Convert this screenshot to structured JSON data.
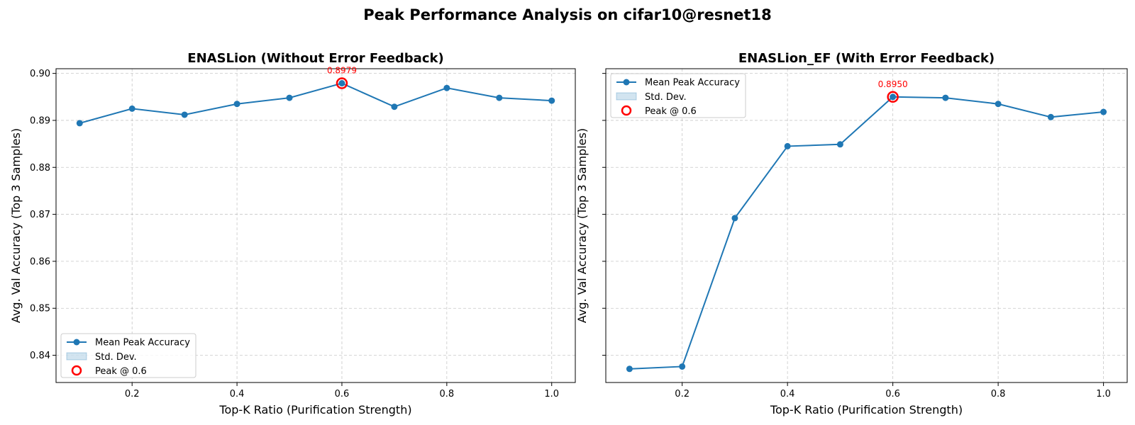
{
  "figure": {
    "suptitle": "Peak Performance Analysis on cifar10@resnet18"
  },
  "chart_data": [
    {
      "type": "line",
      "title": "ENASLion (Without Error Feedback)",
      "xlabel": "Top-K Ratio (Purification Strength)",
      "ylabel": "Avg. Val Accuracy (Top 3 Samples)",
      "x": [
        0.1,
        0.2,
        0.3,
        0.4,
        0.5,
        0.6,
        0.7,
        0.8,
        0.9,
        1.0
      ],
      "series": [
        {
          "name": "Mean Peak Accuracy",
          "values": [
            0.8894,
            0.8925,
            0.8912,
            0.8935,
            0.8948,
            0.8979,
            0.8929,
            0.8969,
            0.8948,
            0.8942
          ],
          "color": "#1f77b4"
        }
      ],
      "std_label": "Std. Dev.",
      "peak": {
        "x": 0.6,
        "y": 0.8979,
        "label": "0.8979",
        "legend": "Peak @ 0.6",
        "color": "#ff0000"
      },
      "xlim": [
        0.055,
        1.045
      ],
      "ylim": [
        0.8342,
        0.901
      ],
      "xticks": [
        0.2,
        0.4,
        0.6,
        0.8,
        1.0
      ],
      "xtick_labels": [
        "0.2",
        "0.4",
        "0.6",
        "0.8",
        "1.0"
      ],
      "yticks": [
        0.84,
        0.85,
        0.86,
        0.87,
        0.88,
        0.89,
        0.9
      ],
      "ytick_labels": [
        "0.84",
        "0.85",
        "0.86",
        "0.87",
        "0.88",
        "0.89",
        "0.90"
      ],
      "show_ytick_labels": true,
      "grid": true,
      "legend_position": "lower-left"
    },
    {
      "type": "line",
      "title": "ENASLion_EF (With Error Feedback)",
      "xlabel": "Top-K Ratio (Purification Strength)",
      "ylabel": "Avg. Val Accuracy (Top 3 Samples)",
      "x": [
        0.1,
        0.2,
        0.3,
        0.4,
        0.5,
        0.6,
        0.7,
        0.8,
        0.9,
        1.0
      ],
      "series": [
        {
          "name": "Mean Peak Accuracy",
          "values": [
            0.8371,
            0.8376,
            0.8692,
            0.8845,
            0.8849,
            0.895,
            0.8948,
            0.8935,
            0.8907,
            0.8918
          ],
          "color": "#1f77b4"
        }
      ],
      "std_label": "Std. Dev.",
      "peak": {
        "x": 0.6,
        "y": 0.895,
        "label": "0.8950",
        "legend": "Peak @ 0.6",
        "color": "#ff0000"
      },
      "xlim": [
        0.055,
        1.045
      ],
      "ylim": [
        0.8342,
        0.901
      ],
      "xticks": [
        0.2,
        0.4,
        0.6,
        0.8,
        1.0
      ],
      "xtick_labels": [
        "0.2",
        "0.4",
        "0.6",
        "0.8",
        "1.0"
      ],
      "yticks": [
        0.84,
        0.85,
        0.86,
        0.87,
        0.88,
        0.89,
        0.9
      ],
      "ytick_labels": [
        "0.84",
        "0.85",
        "0.86",
        "0.87",
        "0.88",
        "0.89",
        "0.90"
      ],
      "show_ytick_labels": false,
      "grid": true,
      "legend_position": "upper-left"
    }
  ]
}
